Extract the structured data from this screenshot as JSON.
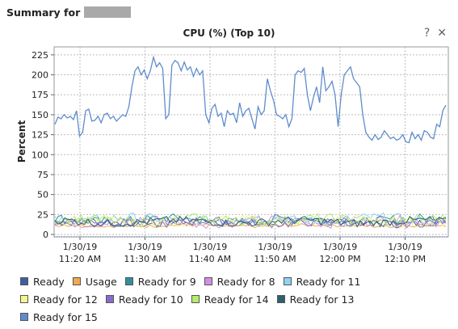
{
  "header": {
    "label": "Summary for"
  },
  "controls": {
    "help": "?",
    "close": "✕"
  },
  "chart_data": {
    "type": "line",
    "title": "CPU (%) (Top 10)",
    "ylabel": "Percent",
    "xlabel": "",
    "ylim": [
      -3,
      235
    ],
    "yticks": [
      0,
      25,
      50,
      75,
      100,
      125,
      150,
      175,
      200,
      225
    ],
    "xticks": [
      {
        "x": 0.05,
        "date": "1/30/19",
        "time": "11:20 AM"
      },
      {
        "x": 0.24,
        "date": "1/30/19",
        "time": "11:30 AM"
      },
      {
        "x": 0.43,
        "date": "1/30/19",
        "time": "11:40 AM"
      },
      {
        "x": 0.62,
        "date": "1/30/19",
        "time": "11:50 AM"
      },
      {
        "x": 0.81,
        "date": "1/30/19",
        "time": "12:00 PM"
      },
      {
        "x": 1.0,
        "date": "1/30/19",
        "time": "12:10 PM"
      }
    ],
    "grid": true,
    "legend_position": "bottom",
    "series": [
      {
        "name": "Ready",
        "color": "#3d5fa0",
        "base": 15,
        "amp": 5
      },
      {
        "name": "Usage",
        "color": "#f1a94e",
        "base": 11,
        "amp": 2
      },
      {
        "name": "Ready for 9",
        "color": "#2f8f9b",
        "base": 18,
        "amp": 6
      },
      {
        "name": "Ready for 8",
        "color": "#d28ee6",
        "base": 16,
        "amp": 6
      },
      {
        "name": "Ready for 11",
        "color": "#8fd3f0",
        "base": 19,
        "amp": 6
      },
      {
        "name": "Ready for 12",
        "color": "#f5f58c",
        "base": 17,
        "amp": 6
      },
      {
        "name": "Ready for 10",
        "color": "#8a6ad0",
        "base": 15,
        "amp": 5
      },
      {
        "name": "Ready for 14",
        "color": "#b8ea6e",
        "base": 18,
        "amp": 6
      },
      {
        "name": "Ready for 13",
        "color": "#2d5f6e",
        "base": 16,
        "amp": 5
      },
      {
        "name": "Ready for 15",
        "color": "#5f8ccc",
        "values": [
          138,
          147,
          145,
          150,
          146,
          148,
          144,
          155,
          123,
          128,
          155,
          157,
          142,
          143,
          148,
          140,
          150,
          152,
          145,
          148,
          142,
          146,
          150,
          148,
          160,
          185,
          205,
          210,
          200,
          206,
          195,
          205,
          222,
          210,
          215,
          208,
          145,
          150,
          212,
          218,
          215,
          205,
          216,
          206,
          210,
          198,
          208,
          200,
          205,
          150,
          140,
          158,
          163,
          148,
          152,
          135,
          155,
          150,
          152,
          140,
          165,
          148,
          155,
          158,
          145,
          132,
          160,
          150,
          155,
          195,
          180,
          168,
          150,
          148,
          145,
          150,
          135,
          145,
          200,
          205,
          203,
          208,
          175,
          155,
          172,
          185,
          165,
          210,
          180,
          185,
          192,
          175,
          135,
          175,
          200,
          205,
          210,
          195,
          190,
          185,
          150,
          128,
          122,
          118,
          125,
          119,
          122,
          130,
          125,
          120,
          122,
          118,
          120,
          125,
          116,
          115,
          128,
          120,
          125,
          118,
          130,
          128,
          122,
          120,
          138,
          135,
          155,
          162
        ]
      }
    ]
  }
}
